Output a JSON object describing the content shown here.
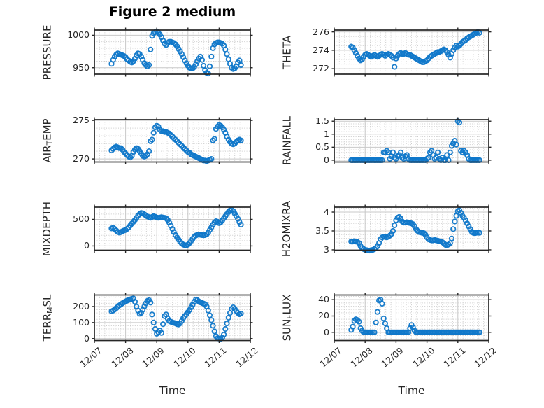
{
  "figure": {
    "title": "Figure 2 medium",
    "xlabel": "Time",
    "background": "#ffffff",
    "marker_color": "#0f77c9",
    "frame_color": "#262626",
    "major_grid_color": "#c8c8c8",
    "minor_grid_color": "#cccccc",
    "text_color": "#262626",
    "x_tick_labels": [
      "12/07",
      "12/08",
      "12/09",
      "12/10",
      "12/11",
      "12/12"
    ]
  },
  "chart_data": {
    "type": "scatter",
    "marker": "open-circle",
    "layout": "4 rows x 2 columns, shared time axis",
    "x_unit": "days after 12/07 00:00",
    "x_range_days": [
      0,
      5
    ],
    "t_start": 0.55,
    "t_step": 0.05,
    "n_points": 84,
    "subplots": [
      {
        "id": "pressure",
        "name": "PRESSURE",
        "label_pre": "PRESSURE",
        "label_sub": "",
        "label_post": "",
        "yticks": [
          950,
          1000
        ],
        "ytick_labels": [
          "950",
          "1000"
        ],
        "ylim": [
          940,
          1008
        ],
        "minor_div": 5,
        "values": [
          956,
          962,
          967,
          970,
          972,
          971,
          970,
          969,
          968,
          966,
          963,
          961,
          959,
          958,
          960,
          964,
          969,
          972,
          971,
          967,
          962,
          957,
          954,
          952,
          954,
          978,
          999,
          1003,
          1005,
          1006,
          1004,
          1001,
          997,
          992,
          987,
          985,
          988,
          990,
          990,
          989,
          988,
          986,
          983,
          979,
          975,
          971,
          966,
          961,
          957,
          953,
          950,
          949,
          949,
          951,
          955,
          960,
          964,
          967,
          962,
          953,
          946,
          942,
          941,
          952,
          967,
          980,
          986,
          988,
          989,
          989,
          988,
          987,
          984,
          978,
          971,
          963,
          956,
          950,
          948,
          949,
          952,
          958,
          961,
          954
        ]
      },
      {
        "id": "theta",
        "name": "THETA",
        "label_pre": "THETA",
        "label_sub": "",
        "label_post": "",
        "yticks": [
          272,
          274,
          276
        ],
        "ytick_labels": [
          "272",
          "274",
          "276"
        ],
        "ylim": [
          271.4,
          276.2
        ],
        "minor_div": 4,
        "values": [
          274.4,
          274.3,
          274.0,
          273.7,
          273.4,
          273.1,
          272.9,
          273.0,
          273.3,
          273.5,
          273.6,
          273.5,
          273.4,
          273.3,
          273.4,
          273.5,
          273.4,
          273.3,
          273.4,
          273.5,
          273.6,
          273.5,
          273.4,
          273.5,
          273.6,
          273.5,
          273.4,
          273.2,
          272.2,
          273.1,
          273.4,
          273.6,
          273.7,
          273.6,
          273.6,
          273.7,
          273.6,
          273.5,
          273.5,
          273.4,
          273.3,
          273.2,
          273.1,
          273.0,
          272.9,
          272.8,
          272.7,
          272.7,
          272.8,
          272.9,
          273.1,
          273.3,
          273.4,
          273.5,
          273.6,
          273.7,
          273.8,
          273.8,
          273.9,
          274.0,
          274.1,
          274.0,
          273.8,
          273.5,
          273.2,
          273.6,
          274.0,
          274.3,
          274.5,
          274.4,
          274.5,
          274.7,
          274.9,
          275.0,
          275.1,
          275.3,
          275.4,
          275.5,
          275.6,
          275.7,
          275.8,
          275.9,
          276.0,
          275.9
        ]
      },
      {
        "id": "air-temp",
        "name": "AIR_TEMP",
        "label_pre": "AIR",
        "label_sub": "T",
        "label_post": "EMP",
        "yticks": [
          270,
          275
        ],
        "ytick_labels": [
          "270",
          "275"
        ],
        "ylim": [
          269.6,
          275.1
        ],
        "minor_div": 5,
        "values": [
          271.1,
          271.3,
          271.5,
          271.6,
          271.5,
          271.4,
          271.4,
          271.2,
          270.9,
          270.7,
          270.5,
          270.3,
          270.2,
          270.4,
          270.9,
          271.2,
          271.4,
          271.3,
          271.0,
          270.7,
          270.4,
          270.3,
          270.4,
          270.6,
          271.0,
          272.3,
          272.5,
          273.4,
          274.1,
          274.3,
          274.2,
          273.8,
          273.6,
          273.6,
          273.5,
          273.5,
          273.4,
          273.3,
          273.1,
          272.9,
          272.7,
          272.5,
          272.3,
          272.1,
          271.9,
          271.7,
          271.5,
          271.3,
          271.1,
          270.9,
          270.8,
          270.6,
          270.5,
          270.4,
          270.3,
          270.2,
          270.1,
          270.0,
          269.9,
          269.8,
          269.8,
          269.7,
          269.8,
          269.9,
          270.0,
          272.4,
          272.6,
          273.9,
          274.2,
          274.4,
          274.3,
          274.1,
          273.8,
          273.4,
          272.9,
          272.5,
          272.2,
          272.0,
          271.9,
          272.0,
          272.2,
          272.4,
          272.5,
          272.4
        ]
      },
      {
        "id": "rainfall",
        "name": "RAINFALL",
        "label_pre": "RAINFALL",
        "label_sub": "",
        "label_post": "",
        "yticks": [
          0,
          0.5,
          1,
          1.5
        ],
        "ytick_labels": [
          "0",
          "0.5",
          "1",
          "1.5"
        ],
        "ylim": [
          -0.07,
          1.56
        ],
        "minor_div": 5,
        "values": [
          0,
          0,
          0,
          0,
          0,
          0,
          0,
          0,
          0,
          0,
          0,
          0,
          0,
          0,
          0,
          0,
          0,
          0,
          0,
          0,
          0,
          0.3,
          0.3,
          0.36,
          0.3,
          0.05,
          0.15,
          0.3,
          0.1,
          0.05,
          0.15,
          0.2,
          0.3,
          0.1,
          0.05,
          0.15,
          0.2,
          0.05,
          0,
          0,
          0,
          0,
          0,
          0,
          0,
          0,
          0,
          0,
          0,
          0.05,
          0.1,
          0.3,
          0.36,
          0.2,
          0.05,
          0.1,
          0.3,
          0.05,
          0,
          0.1,
          0,
          0,
          0.2,
          0,
          0.3,
          0.55,
          0.65,
          0.75,
          0.6,
          1.5,
          1.45,
          0.36,
          0.3,
          0.36,
          0.3,
          0.2,
          0.05,
          0,
          0,
          0,
          0,
          0,
          0,
          0
        ]
      },
      {
        "id": "mixdepth",
        "name": "MIXDEPTH",
        "label_pre": "MIXDEPTH",
        "label_sub": "",
        "label_post": "",
        "yticks": [
          0,
          500
        ],
        "ytick_labels": [
          "0",
          "500"
        ],
        "ylim": [
          -80,
          730
        ],
        "minor_div": 5,
        "values": [
          330,
          340,
          320,
          290,
          265,
          250,
          260,
          275,
          290,
          300,
          320,
          350,
          385,
          420,
          455,
          490,
          530,
          570,
          600,
          620,
          615,
          595,
          575,
          555,
          540,
          530,
          545,
          560,
          550,
          535,
          530,
          535,
          540,
          535,
          530,
          520,
          490,
          440,
          380,
          320,
          260,
          205,
          160,
          120,
          80,
          45,
          25,
          15,
          10,
          25,
          55,
          95,
          135,
          170,
          195,
          210,
          215,
          210,
          205,
          200,
          205,
          220,
          250,
          300,
          350,
          400,
          440,
          465,
          455,
          430,
          445,
          480,
          520,
          560,
          600,
          640,
          670,
          680,
          655,
          610,
          560,
          510,
          450,
          400
        ]
      },
      {
        "id": "h2omixra",
        "name": "H2OMIXRA",
        "label_pre": "H2OMIXRA",
        "label_sub": "",
        "label_post": "",
        "yticks": [
          3,
          3.5,
          4
        ],
        "ytick_labels": [
          "3",
          "3.5",
          "4"
        ],
        "ylim": [
          2.99,
          4.13
        ],
        "minor_div": 5,
        "values": [
          3.22,
          3.22,
          3.23,
          3.22,
          3.21,
          3.18,
          3.1,
          3.05,
          3.02,
          3.0,
          2.99,
          2.98,
          2.98,
          2.99,
          3.0,
          3.02,
          3.05,
          3.1,
          3.18,
          3.28,
          3.33,
          3.35,
          3.34,
          3.33,
          3.35,
          3.38,
          3.42,
          3.5,
          3.65,
          3.78,
          3.85,
          3.87,
          3.83,
          3.75,
          3.72,
          3.72,
          3.73,
          3.72,
          3.71,
          3.7,
          3.68,
          3.62,
          3.55,
          3.5,
          3.47,
          3.46,
          3.45,
          3.44,
          3.4,
          3.33,
          3.28,
          3.26,
          3.25,
          3.25,
          3.26,
          3.25,
          3.24,
          3.23,
          3.22,
          3.2,
          3.17,
          3.13,
          3.12,
          3.14,
          3.18,
          3.3,
          3.55,
          3.75,
          3.9,
          4.02,
          4.05,
          3.98,
          3.9,
          3.85,
          3.78,
          3.7,
          3.62,
          3.55,
          3.48,
          3.45,
          3.44,
          3.45,
          3.46,
          3.45
        ]
      },
      {
        "id": "terr-msl",
        "name": "TERR_MSL",
        "label_pre": "TERR",
        "label_sub": "M",
        "label_post": "SL",
        "yticks": [
          0,
          100,
          200
        ],
        "ytick_labels": [
          "0",
          "100",
          "200"
        ],
        "ylim": [
          -12,
          272
        ],
        "minor_div": 5,
        "values": [
          170,
          175,
          182,
          190,
          198,
          207,
          214,
          220,
          227,
          232,
          237,
          241,
          245,
          248,
          250,
          230,
          200,
          175,
          155,
          160,
          180,
          200,
          220,
          235,
          240,
          225,
          150,
          100,
          60,
          30,
          40,
          50,
          35,
          90,
          140,
          150,
          125,
          110,
          105,
          100,
          98,
          95,
          90,
          88,
          95,
          110,
          128,
          140,
          152,
          165,
          178,
          195,
          212,
          230,
          243,
          240,
          232,
          226,
          222,
          218,
          215,
          200,
          175,
          145,
          115,
          80,
          45,
          15,
          2,
          0,
          -2,
          5,
          25,
          60,
          95,
          130,
          160,
          185,
          195,
          185,
          172,
          160,
          152,
          156
        ]
      },
      {
        "id": "sun-flux",
        "name": "SUN_FLUX",
        "label_pre": "SUN",
        "label_sub": "F",
        "label_post": "LUX",
        "yticks": [
          0,
          20,
          40
        ],
        "ytick_labels": [
          "0",
          "20",
          "40"
        ],
        "ylim": [
          -10,
          45.7
        ],
        "minor_div": 5,
        "values": [
          3,
          7,
          14,
          16,
          15,
          13,
          5,
          2,
          0,
          0,
          0,
          0,
          0,
          0,
          0,
          0,
          12,
          25,
          39,
          40,
          35,
          17,
          11,
          5,
          0,
          0,
          0,
          0,
          0,
          0,
          0,
          0,
          0,
          0,
          0,
          0,
          0,
          0,
          5,
          9,
          6,
          2,
          0,
          0,
          0,
          0,
          0,
          0,
          0,
          0,
          0,
          0,
          0,
          0,
          0,
          0,
          0,
          0,
          0,
          0,
          0,
          0,
          0,
          0,
          0,
          0,
          0,
          0,
          0,
          0,
          0,
          0,
          0,
          0,
          0,
          0,
          0,
          0,
          0,
          0,
          0,
          0,
          0,
          0
        ]
      }
    ]
  }
}
